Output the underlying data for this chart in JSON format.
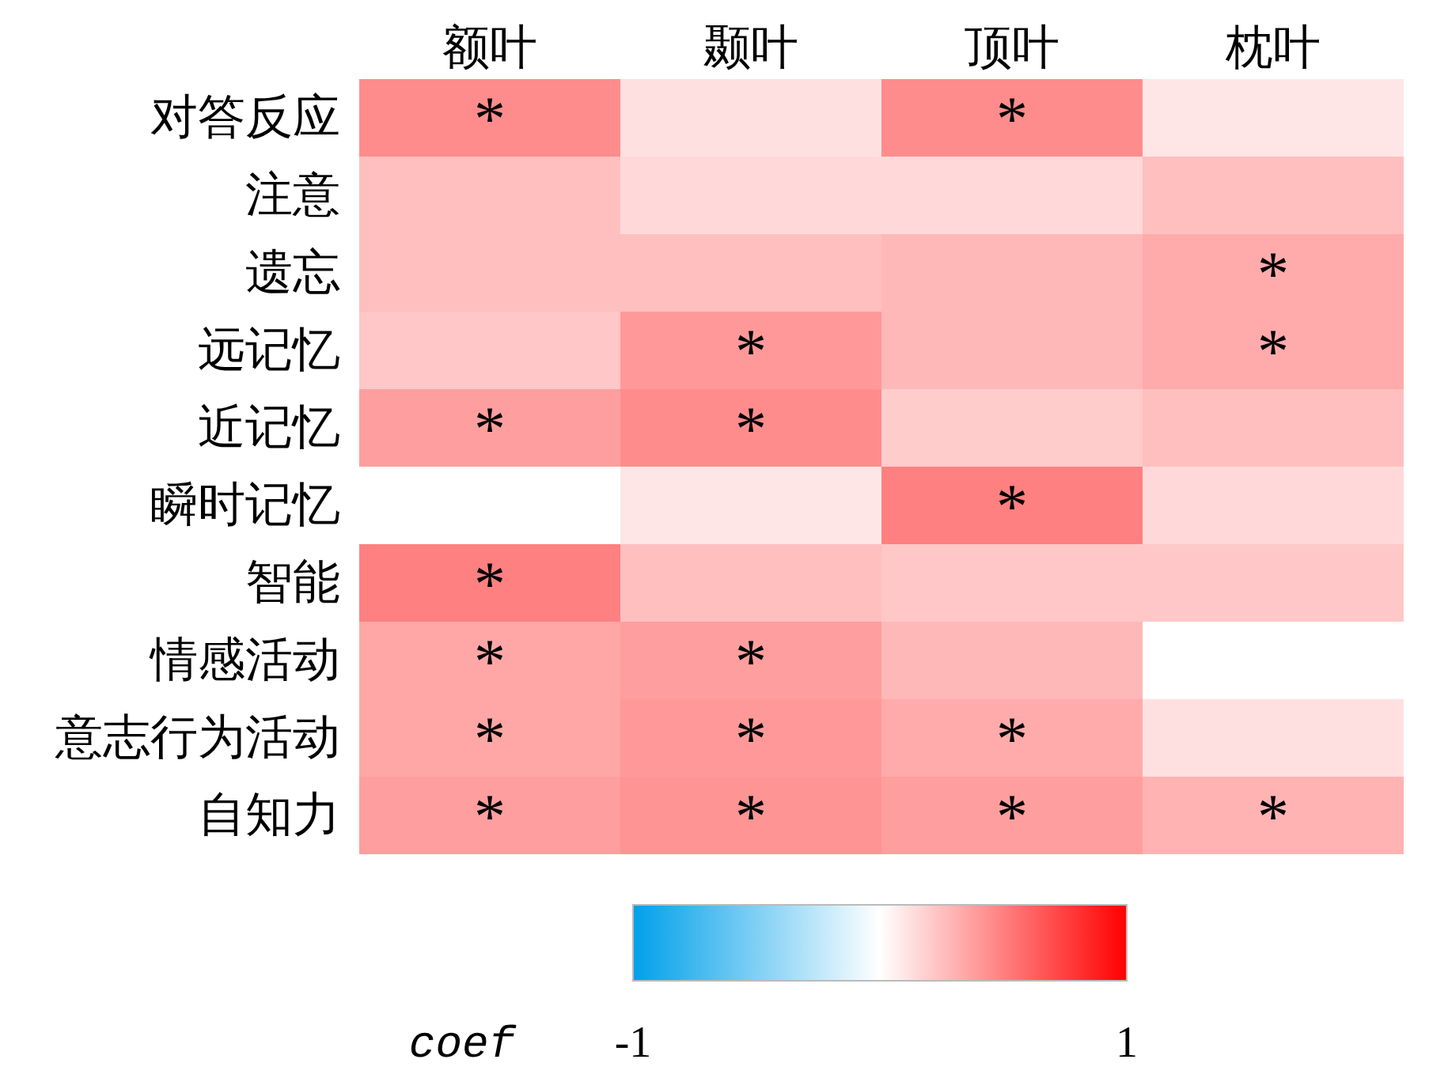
{
  "chart_data": {
    "type": "heatmap",
    "categories": [
      "额叶",
      "颞叶",
      "顶叶",
      "枕叶"
    ],
    "y_categories": [
      "对答反应",
      "注意",
      "遗忘",
      "远记忆",
      "近记忆",
      "瞬时记忆",
      "智能",
      "情感活动",
      "意志行为活动",
      "自知力"
    ],
    "cells": [
      [
        0.45,
        0.12,
        0.45,
        0.1
      ],
      [
        0.25,
        0.15,
        0.15,
        0.25
      ],
      [
        0.25,
        0.25,
        0.28,
        0.33
      ],
      [
        0.22,
        0.4,
        0.28,
        0.33
      ],
      [
        0.38,
        0.45,
        0.2,
        0.25
      ],
      [
        0.0,
        0.1,
        0.5,
        0.15
      ],
      [
        0.5,
        0.25,
        0.22,
        0.22
      ],
      [
        0.35,
        0.38,
        0.28,
        0.0
      ],
      [
        0.35,
        0.4,
        0.33,
        0.12
      ],
      [
        0.38,
        0.42,
        0.38,
        0.3
      ]
    ],
    "cell_labels": [
      [
        "*",
        null,
        "*",
        null
      ],
      [
        null,
        null,
        null,
        null
      ],
      [
        null,
        null,
        null,
        "*"
      ],
      [
        null,
        "*",
        null,
        "*"
      ],
      [
        "*",
        "*",
        null,
        null
      ],
      [
        null,
        null,
        "*",
        null
      ],
      [
        "*",
        null,
        null,
        null
      ],
      [
        "*",
        "*",
        null,
        null
      ],
      [
        "*",
        "*",
        "*",
        null
      ],
      [
        "*",
        "*",
        "*",
        "*"
      ]
    ],
    "clim": [
      -1,
      1
    ],
    "cticks": [
      -1,
      1
    ],
    "clabel": "coef"
  }
}
